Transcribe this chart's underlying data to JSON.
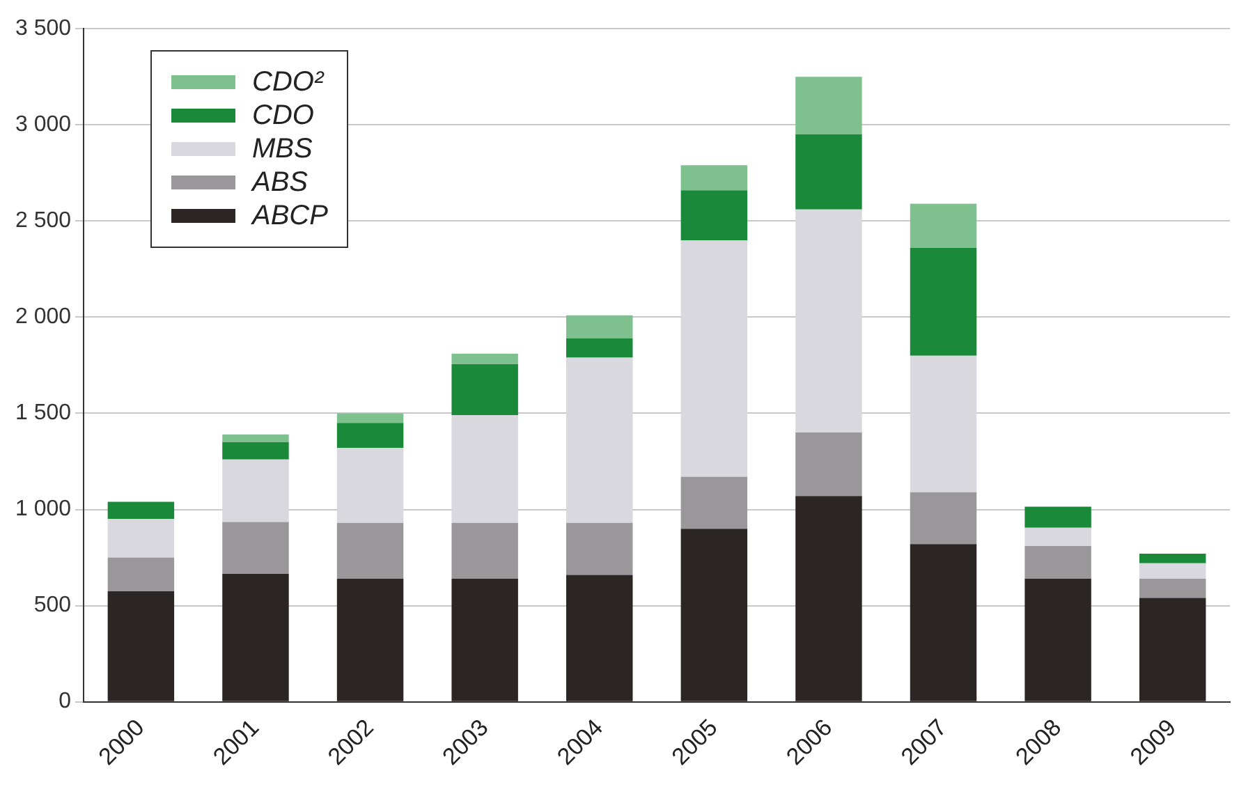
{
  "chart_data": {
    "type": "bar",
    "stacked": true,
    "categories": [
      "2000",
      "2001",
      "2002",
      "2003",
      "2004",
      "2005",
      "2006",
      "2007",
      "2008",
      "2009"
    ],
    "series": [
      {
        "name": "ABCP",
        "color": "#2b2523",
        "values": [
          575,
          665,
          640,
          640,
          660,
          900,
          1070,
          820,
          640,
          540
        ]
      },
      {
        "name": "ABS",
        "color": "#9a979b",
        "values": [
          175,
          270,
          290,
          290,
          270,
          270,
          330,
          270,
          170,
          100
        ]
      },
      {
        "name": "MBS",
        "color": "#d8d8de",
        "values": [
          200,
          325,
          390,
          560,
          860,
          1230,
          1160,
          710,
          95,
          80
        ]
      },
      {
        "name": "CDO",
        "color": "#1a8a3a",
        "values": [
          90,
          90,
          130,
          265,
          100,
          260,
          390,
          560,
          110,
          50
        ]
      },
      {
        "name": "CDO²",
        "color": "#7fc08f",
        "values": [
          null,
          40,
          50,
          55,
          120,
          130,
          300,
          230,
          null,
          null
        ]
      }
    ],
    "ylim": [
      0,
      3500
    ],
    "yticks": [
      0,
      500,
      {
        "value": 1000,
        "label": "1 000"
      },
      {
        "value": 1500,
        "label": "1 500"
      },
      {
        "value": 2000,
        "label": "2 000"
      },
      {
        "value": 2500,
        "label": "2 500"
      },
      {
        "value": 3000,
        "label": "3 000"
      },
      {
        "value": 3500,
        "label": "3 500"
      }
    ],
    "grid": "y",
    "legend": "top left"
  }
}
